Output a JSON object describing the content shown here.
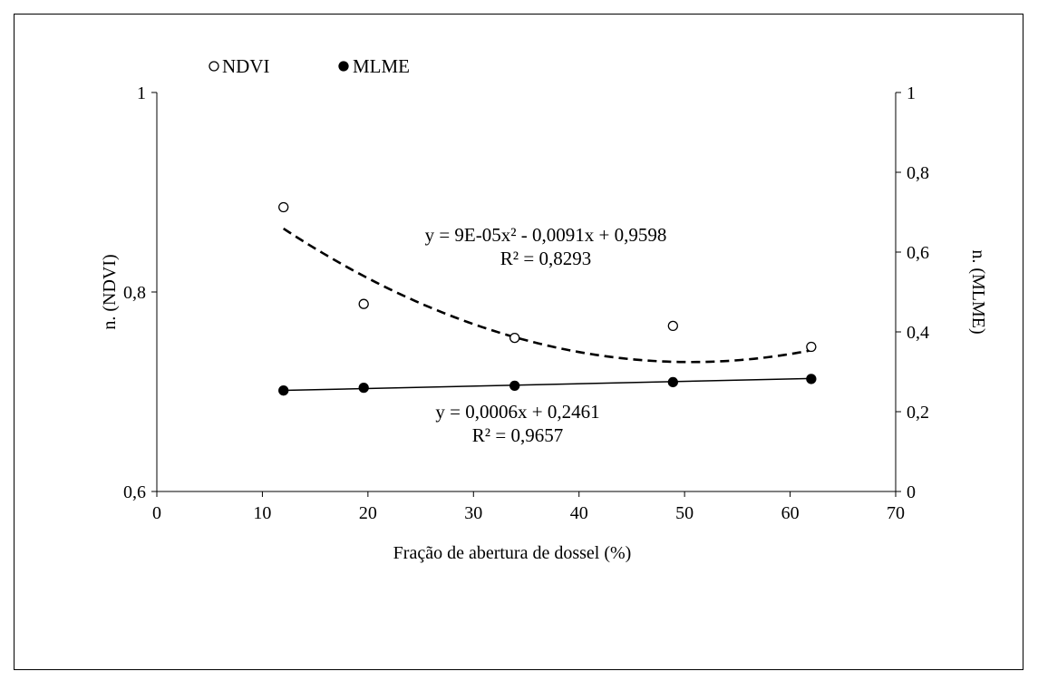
{
  "chart_data": {
    "type": "scatter",
    "title": "",
    "xlabel": "Fração de abertura de dossel (%)",
    "ylabel_left": "n. (NDVI)",
    "ylabel_right": "n. (MLME)",
    "xlim": [
      0,
      70
    ],
    "xticks": [
      0,
      10,
      20,
      30,
      40,
      50,
      60,
      70
    ],
    "ylim_left": [
      0.6,
      1.0
    ],
    "yticks_left": [
      "0,6",
      "0,8",
      "1"
    ],
    "yticks_left_values": [
      0.6,
      0.8,
      1.0
    ],
    "ylim_right": [
      0,
      1
    ],
    "yticks_right": [
      "0",
      "0,2",
      "0,4",
      "0,6",
      "0,8",
      "1"
    ],
    "yticks_right_values": [
      0,
      0.2,
      0.4,
      0.6,
      0.8,
      1.0
    ],
    "grid": false,
    "legend_position": "top-left",
    "series": [
      {
        "name": "NDVI",
        "axis": "left",
        "marker": "open-circle",
        "x": [
          12,
          19.6,
          33.9,
          48.9,
          62
        ],
        "y": [
          0.885,
          0.788,
          0.754,
          0.766,
          0.745
        ],
        "trendline": {
          "kind": "polynomial",
          "coefficients": [
            9e-05,
            -0.0091,
            0.9598
          ],
          "x_range": [
            12,
            62
          ],
          "style": "dashed",
          "equation": "y = 9E-05x² - 0,0091x + 0,9598",
          "r2": "R² = 0,8293"
        }
      },
      {
        "name": "MLME",
        "axis": "right",
        "marker": "filled-circle",
        "x": [
          12,
          19.6,
          33.9,
          48.9,
          62
        ],
        "y": [
          0.253,
          0.26,
          0.265,
          0.274,
          0.282
        ],
        "trendline": {
          "kind": "linear",
          "coefficients": [
            0.0006,
            0.2461
          ],
          "x_range": [
            12,
            62
          ],
          "style": "solid",
          "equation": "y = 0,0006x + 0,2461",
          "r2": "R² = 0,9657"
        }
      }
    ]
  }
}
